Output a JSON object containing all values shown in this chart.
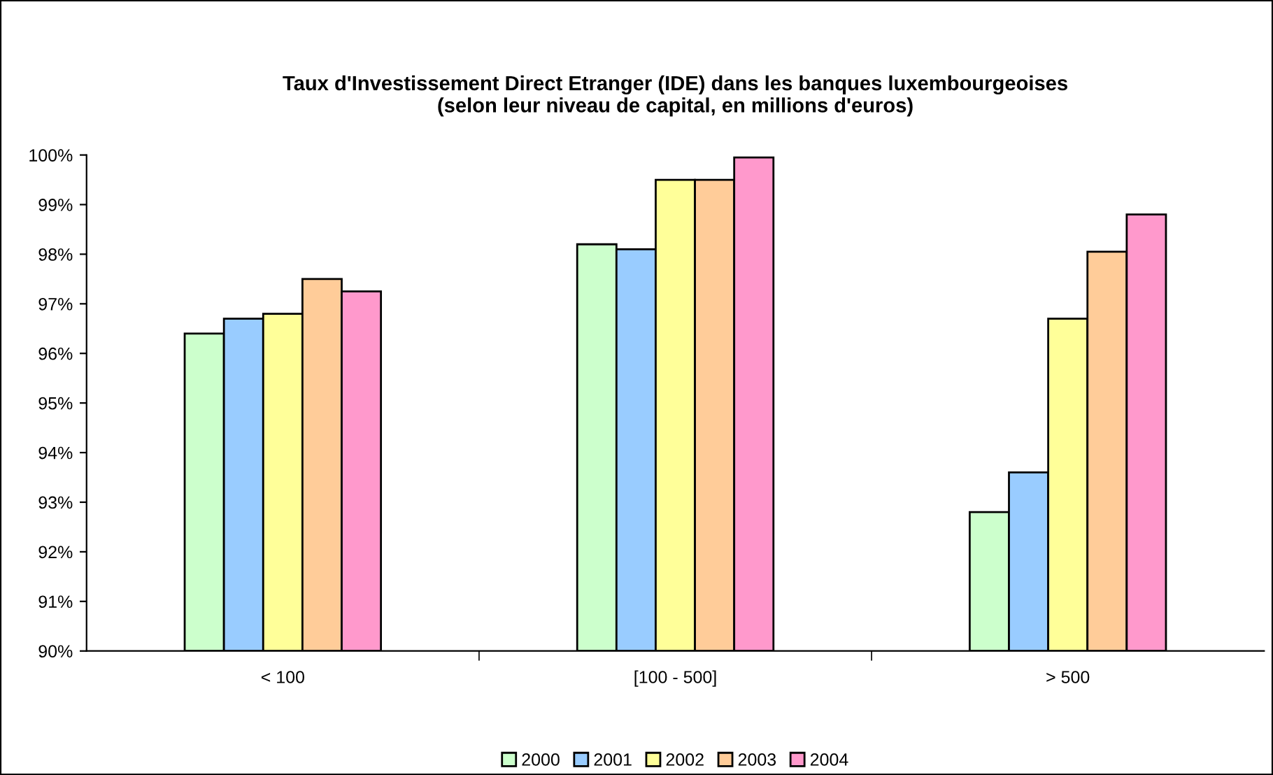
{
  "chart_data": {
    "type": "bar",
    "title": "Taux d'Investissement Direct Etranger (IDE) dans les banques luxembourgeoises\n(selon leur niveau de capital, en millions d'euros)",
    "categories": [
      "< 100",
      "[100 - 500]",
      "> 500"
    ],
    "series": [
      {
        "name": "2000",
        "color": "#ccffcc",
        "values": [
          96.4,
          98.2,
          92.8
        ]
      },
      {
        "name": "2001",
        "color": "#99ccff",
        "values": [
          96.7,
          98.1,
          93.6
        ]
      },
      {
        "name": "2002",
        "color": "#ffff99",
        "values": [
          96.8,
          99.5,
          96.7
        ]
      },
      {
        "name": "2003",
        "color": "#ffcc99",
        "values": [
          97.5,
          99.5,
          98.05
        ]
      },
      {
        "name": "2004",
        "color": "#ff99cc",
        "values": [
          97.25,
          99.95,
          98.8
        ]
      }
    ],
    "ylim": [
      90,
      100
    ],
    "yticks": [
      {
        "value": 90,
        "label": "90%"
      },
      {
        "value": 91,
        "label": "91%"
      },
      {
        "value": 92,
        "label": "92%"
      },
      {
        "value": 93,
        "label": "93%"
      },
      {
        "value": 94,
        "label": "94%"
      },
      {
        "value": 95,
        "label": "95%"
      },
      {
        "value": 96,
        "label": "96%"
      },
      {
        "value": 97,
        "label": "97%"
      },
      {
        "value": 98,
        "label": "98%"
      },
      {
        "value": 99,
        "label": "99%"
      },
      {
        "value": 100,
        "label": "100%"
      }
    ],
    "grid": false,
    "legend": "bottom"
  }
}
